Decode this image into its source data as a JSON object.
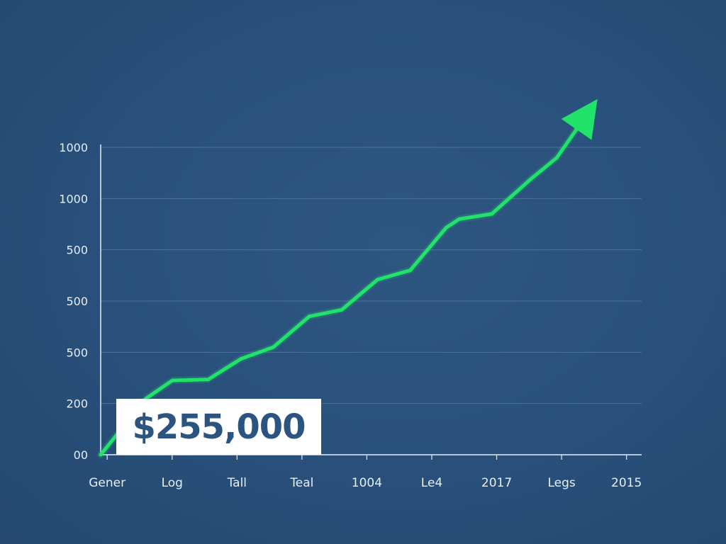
{
  "callout": {
    "value_text": "$255,000"
  },
  "colors": {
    "background": "#2a5178",
    "line": "#22e36a",
    "grid": "#5a7da3",
    "axis": "#e8eef5",
    "callout_text": "#2b5580"
  },
  "chart_data": {
    "type": "line",
    "title": "",
    "xlabel": "",
    "ylabel": "",
    "grid": true,
    "y_tick_labels": [
      "00",
      "200",
      "500",
      "500",
      "500",
      "1000",
      "1000"
    ],
    "x_tick_labels": [
      "Gener",
      "Log",
      "Tall",
      "Teal",
      "1004",
      "Le4",
      "2017",
      "Legs",
      "2015"
    ],
    "ylim": [
      0,
      6
    ],
    "xlim": [
      0,
      8.3
    ],
    "series": [
      {
        "x": [
          0,
          0.7,
          1.1,
          1.65,
          2.15,
          2.65,
          3.2,
          3.7,
          4.25,
          4.75,
          5.3,
          5.5,
          6.0,
          6.6,
          7.0,
          7.3
        ],
        "values": [
          0,
          1.1,
          1.45,
          1.47,
          1.87,
          2.1,
          2.7,
          2.83,
          3.42,
          3.6,
          4.43,
          4.6,
          4.7,
          5.38,
          5.8,
          6.35
        ],
        "arrow_end": true
      }
    ]
  }
}
